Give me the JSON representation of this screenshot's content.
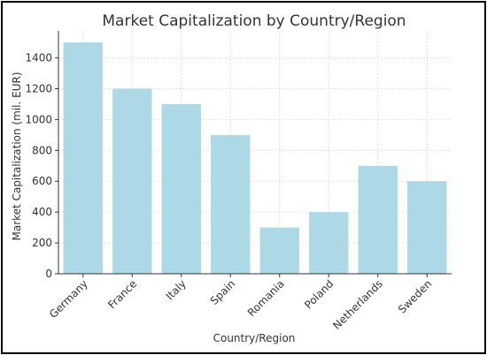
{
  "chart_data": {
    "type": "bar",
    "title": "Market Capitalization by Country/Region",
    "xlabel": "Country/Region",
    "ylabel": "Market Capitalization (mil. EUR)",
    "categories": [
      "Germany",
      "France",
      "Italy",
      "Spain",
      "Romania",
      "Poland",
      "Netherlands",
      "Sweden"
    ],
    "values": [
      1500,
      1200,
      1100,
      900,
      300,
      400,
      700,
      600
    ],
    "ylim": [
      0,
      1575
    ],
    "yticks": [
      0,
      200,
      400,
      600,
      800,
      1000,
      1200,
      1400
    ],
    "grid": true,
    "bar_color": "#add8e6"
  }
}
